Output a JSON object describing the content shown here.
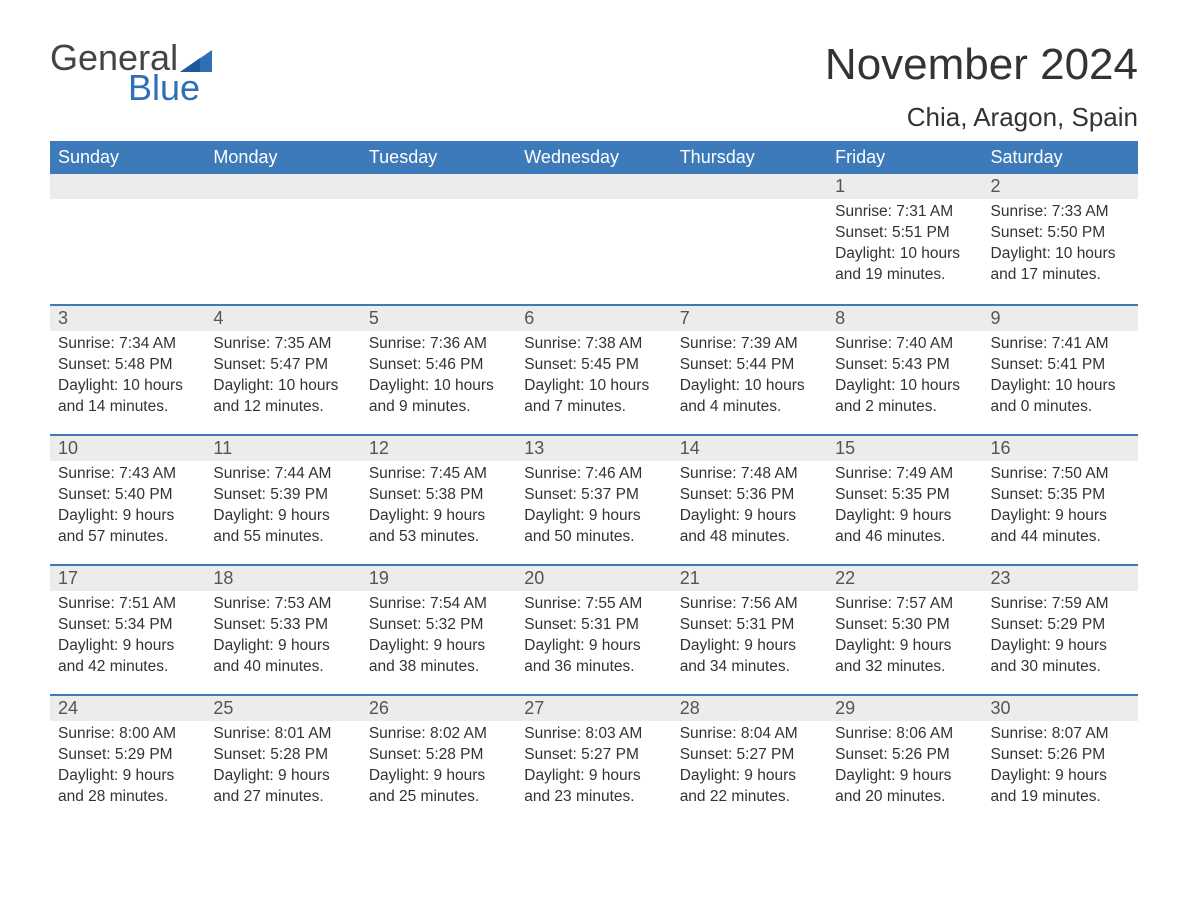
{
  "logo": {
    "text_general": "General",
    "text_blue": "Blue",
    "brand_color": "#2f6fb5"
  },
  "title": "November 2024",
  "location": "Chia, Aragon, Spain",
  "colors": {
    "header_bg": "#3c7ab9",
    "header_text": "#ffffff",
    "daynum_bg": "#ececec",
    "daynum_border": "#3c7ab9",
    "body_bg": "#ffffff",
    "text": "#333333"
  },
  "weekdays": [
    "Sunday",
    "Monday",
    "Tuesday",
    "Wednesday",
    "Thursday",
    "Friday",
    "Saturday"
  ],
  "weeks": [
    [
      null,
      null,
      null,
      null,
      null,
      {
        "day": "1",
        "sunrise": "Sunrise: 7:31 AM",
        "sunset": "Sunset: 5:51 PM",
        "daylight1": "Daylight: 10 hours",
        "daylight2": "and 19 minutes."
      },
      {
        "day": "2",
        "sunrise": "Sunrise: 7:33 AM",
        "sunset": "Sunset: 5:50 PM",
        "daylight1": "Daylight: 10 hours",
        "daylight2": "and 17 minutes."
      }
    ],
    [
      {
        "day": "3",
        "sunrise": "Sunrise: 7:34 AM",
        "sunset": "Sunset: 5:48 PM",
        "daylight1": "Daylight: 10 hours",
        "daylight2": "and 14 minutes."
      },
      {
        "day": "4",
        "sunrise": "Sunrise: 7:35 AM",
        "sunset": "Sunset: 5:47 PM",
        "daylight1": "Daylight: 10 hours",
        "daylight2": "and 12 minutes."
      },
      {
        "day": "5",
        "sunrise": "Sunrise: 7:36 AM",
        "sunset": "Sunset: 5:46 PM",
        "daylight1": "Daylight: 10 hours",
        "daylight2": "and 9 minutes."
      },
      {
        "day": "6",
        "sunrise": "Sunrise: 7:38 AM",
        "sunset": "Sunset: 5:45 PM",
        "daylight1": "Daylight: 10 hours",
        "daylight2": "and 7 minutes."
      },
      {
        "day": "7",
        "sunrise": "Sunrise: 7:39 AM",
        "sunset": "Sunset: 5:44 PM",
        "daylight1": "Daylight: 10 hours",
        "daylight2": "and 4 minutes."
      },
      {
        "day": "8",
        "sunrise": "Sunrise: 7:40 AM",
        "sunset": "Sunset: 5:43 PM",
        "daylight1": "Daylight: 10 hours",
        "daylight2": "and 2 minutes."
      },
      {
        "day": "9",
        "sunrise": "Sunrise: 7:41 AM",
        "sunset": "Sunset: 5:41 PM",
        "daylight1": "Daylight: 10 hours",
        "daylight2": "and 0 minutes."
      }
    ],
    [
      {
        "day": "10",
        "sunrise": "Sunrise: 7:43 AM",
        "sunset": "Sunset: 5:40 PM",
        "daylight1": "Daylight: 9 hours",
        "daylight2": "and 57 minutes."
      },
      {
        "day": "11",
        "sunrise": "Sunrise: 7:44 AM",
        "sunset": "Sunset: 5:39 PM",
        "daylight1": "Daylight: 9 hours",
        "daylight2": "and 55 minutes."
      },
      {
        "day": "12",
        "sunrise": "Sunrise: 7:45 AM",
        "sunset": "Sunset: 5:38 PM",
        "daylight1": "Daylight: 9 hours",
        "daylight2": "and 53 minutes."
      },
      {
        "day": "13",
        "sunrise": "Sunrise: 7:46 AM",
        "sunset": "Sunset: 5:37 PM",
        "daylight1": "Daylight: 9 hours",
        "daylight2": "and 50 minutes."
      },
      {
        "day": "14",
        "sunrise": "Sunrise: 7:48 AM",
        "sunset": "Sunset: 5:36 PM",
        "daylight1": "Daylight: 9 hours",
        "daylight2": "and 48 minutes."
      },
      {
        "day": "15",
        "sunrise": "Sunrise: 7:49 AM",
        "sunset": "Sunset: 5:35 PM",
        "daylight1": "Daylight: 9 hours",
        "daylight2": "and 46 minutes."
      },
      {
        "day": "16",
        "sunrise": "Sunrise: 7:50 AM",
        "sunset": "Sunset: 5:35 PM",
        "daylight1": "Daylight: 9 hours",
        "daylight2": "and 44 minutes."
      }
    ],
    [
      {
        "day": "17",
        "sunrise": "Sunrise: 7:51 AM",
        "sunset": "Sunset: 5:34 PM",
        "daylight1": "Daylight: 9 hours",
        "daylight2": "and 42 minutes."
      },
      {
        "day": "18",
        "sunrise": "Sunrise: 7:53 AM",
        "sunset": "Sunset: 5:33 PM",
        "daylight1": "Daylight: 9 hours",
        "daylight2": "and 40 minutes."
      },
      {
        "day": "19",
        "sunrise": "Sunrise: 7:54 AM",
        "sunset": "Sunset: 5:32 PM",
        "daylight1": "Daylight: 9 hours",
        "daylight2": "and 38 minutes."
      },
      {
        "day": "20",
        "sunrise": "Sunrise: 7:55 AM",
        "sunset": "Sunset: 5:31 PM",
        "daylight1": "Daylight: 9 hours",
        "daylight2": "and 36 minutes."
      },
      {
        "day": "21",
        "sunrise": "Sunrise: 7:56 AM",
        "sunset": "Sunset: 5:31 PM",
        "daylight1": "Daylight: 9 hours",
        "daylight2": "and 34 minutes."
      },
      {
        "day": "22",
        "sunrise": "Sunrise: 7:57 AM",
        "sunset": "Sunset: 5:30 PM",
        "daylight1": "Daylight: 9 hours",
        "daylight2": "and 32 minutes."
      },
      {
        "day": "23",
        "sunrise": "Sunrise: 7:59 AM",
        "sunset": "Sunset: 5:29 PM",
        "daylight1": "Daylight: 9 hours",
        "daylight2": "and 30 minutes."
      }
    ],
    [
      {
        "day": "24",
        "sunrise": "Sunrise: 8:00 AM",
        "sunset": "Sunset: 5:29 PM",
        "daylight1": "Daylight: 9 hours",
        "daylight2": "and 28 minutes."
      },
      {
        "day": "25",
        "sunrise": "Sunrise: 8:01 AM",
        "sunset": "Sunset: 5:28 PM",
        "daylight1": "Daylight: 9 hours",
        "daylight2": "and 27 minutes."
      },
      {
        "day": "26",
        "sunrise": "Sunrise: 8:02 AM",
        "sunset": "Sunset: 5:28 PM",
        "daylight1": "Daylight: 9 hours",
        "daylight2": "and 25 minutes."
      },
      {
        "day": "27",
        "sunrise": "Sunrise: 8:03 AM",
        "sunset": "Sunset: 5:27 PM",
        "daylight1": "Daylight: 9 hours",
        "daylight2": "and 23 minutes."
      },
      {
        "day": "28",
        "sunrise": "Sunrise: 8:04 AM",
        "sunset": "Sunset: 5:27 PM",
        "daylight1": "Daylight: 9 hours",
        "daylight2": "and 22 minutes."
      },
      {
        "day": "29",
        "sunrise": "Sunrise: 8:06 AM",
        "sunset": "Sunset: 5:26 PM",
        "daylight1": "Daylight: 9 hours",
        "daylight2": "and 20 minutes."
      },
      {
        "day": "30",
        "sunrise": "Sunrise: 8:07 AM",
        "sunset": "Sunset: 5:26 PM",
        "daylight1": "Daylight: 9 hours",
        "daylight2": "and 19 minutes."
      }
    ]
  ]
}
